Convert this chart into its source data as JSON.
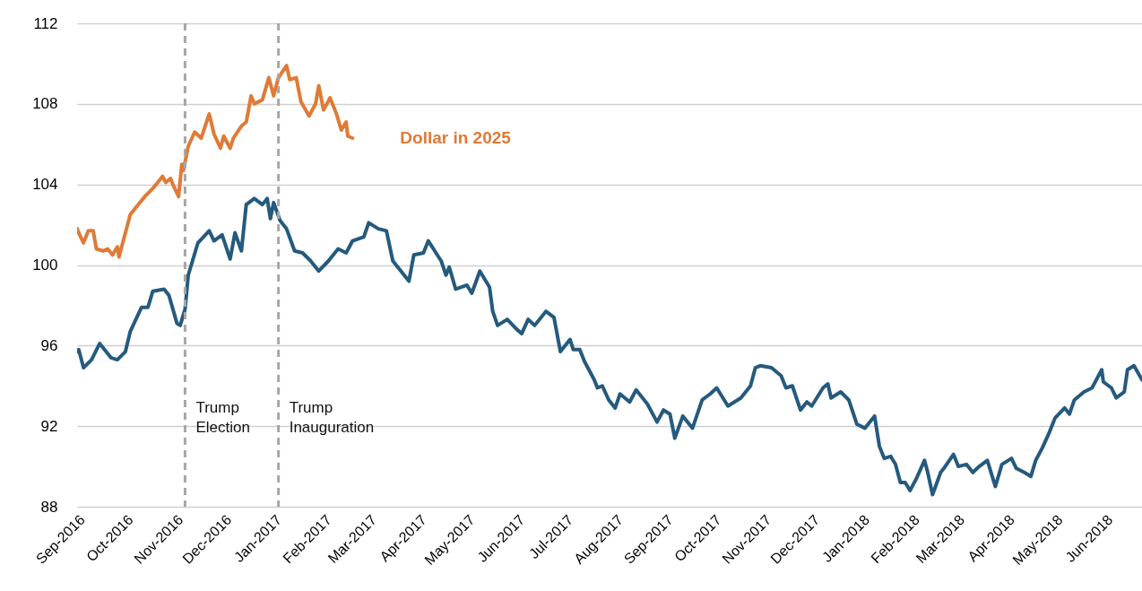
{
  "chart_data": {
    "type": "line",
    "xlim": [
      "2016-09-01",
      "2018-06-24"
    ],
    "xticks": [
      {
        "value": "2016-09-01",
        "label": "Sep-2016"
      },
      {
        "value": "2016-10-01",
        "label": "Oct-2016"
      },
      {
        "value": "2016-11-01",
        "label": "Nov-2016"
      },
      {
        "value": "2016-12-01",
        "label": "Dec-2016"
      },
      {
        "value": "2017-01-01",
        "label": "Jan-2017"
      },
      {
        "value": "2017-02-01",
        "label": "Feb-2017"
      },
      {
        "value": "2017-03-01",
        "label": "Mar-2017"
      },
      {
        "value": "2017-04-01",
        "label": "Apr-2017"
      },
      {
        "value": "2017-05-01",
        "label": "May-2017"
      },
      {
        "value": "2017-06-01",
        "label": "Jun-2017"
      },
      {
        "value": "2017-07-01",
        "label": "Jul-2017"
      },
      {
        "value": "2017-08-01",
        "label": "Aug-2017"
      },
      {
        "value": "2017-09-01",
        "label": "Sep-2017"
      },
      {
        "value": "2017-10-01",
        "label": "Oct-2017"
      },
      {
        "value": "2017-11-01",
        "label": "Nov-2017"
      },
      {
        "value": "2017-12-01",
        "label": "Dec-2017"
      },
      {
        "value": "2018-01-01",
        "label": "Jan-2018"
      },
      {
        "value": "2018-02-01",
        "label": "Feb-2018"
      },
      {
        "value": "2018-03-01",
        "label": "Mar-2018"
      },
      {
        "value": "2018-04-01",
        "label": "Apr-2018"
      },
      {
        "value": "2018-05-01",
        "label": "May-2018"
      },
      {
        "value": "2018-06-01",
        "label": "Jun-2018"
      }
    ],
    "ylim": [
      88,
      112
    ],
    "yticks": [
      88,
      92,
      96,
      100,
      104,
      108,
      112
    ],
    "grid": "y",
    "ref_lines": [
      {
        "axis": "x",
        "value": "2016-11-07",
        "label": "Trump Election",
        "color": "#a6a6a6",
        "line_style": "dashed"
      },
      {
        "axis": "x",
        "value": "2017-01-04",
        "label": "Trump Inauguration",
        "color": "#a6a6a6",
        "line_style": "dashed"
      }
    ],
    "series": [
      {
        "color": "#255a7e",
        "x": [
          "2016-09-01",
          "2016-09-02",
          "2016-09-05",
          "2016-09-10",
          "2016-09-15",
          "2016-09-22",
          "2016-09-26",
          "2016-10-01",
          "2016-10-04",
          "2016-10-11",
          "2016-10-15",
          "2016-10-18",
          "2016-10-25",
          "2016-10-28",
          "2016-11-02",
          "2016-11-04",
          "2016-11-07",
          "2016-11-09",
          "2016-11-15",
          "2016-11-22",
          "2016-11-25",
          "2016-11-30",
          "2016-12-05",
          "2016-12-08",
          "2016-12-12",
          "2016-12-15",
          "2016-12-20",
          "2016-12-25",
          "2016-12-28",
          "2016-12-30",
          "2017-01-01",
          "2017-01-05",
          "2017-01-09",
          "2017-01-14",
          "2017-01-19",
          "2017-01-24",
          "2017-01-29",
          "2017-02-04",
          "2017-02-10",
          "2017-02-15",
          "2017-02-19",
          "2017-02-26",
          "2017-03-01",
          "2017-03-07",
          "2017-03-12",
          "2017-03-16",
          "2017-03-20",
          "2017-03-26",
          "2017-03-29",
          "2017-04-04",
          "2017-04-07",
          "2017-04-15",
          "2017-04-18",
          "2017-04-20",
          "2017-04-24",
          "2017-05-01",
          "2017-05-04",
          "2017-05-09",
          "2017-05-15",
          "2017-05-17",
          "2017-05-20",
          "2017-05-26",
          "2017-06-01",
          "2017-06-04",
          "2017-06-08",
          "2017-06-12",
          "2017-06-19",
          "2017-06-24",
          "2017-06-28",
          "2017-07-04",
          "2017-07-06",
          "2017-07-10",
          "2017-07-13",
          "2017-07-19",
          "2017-07-21",
          "2017-07-24",
          "2017-07-28",
          "2017-08-01",
          "2017-08-04",
          "2017-08-10",
          "2017-08-14",
          "2017-08-21",
          "2017-08-27",
          "2017-08-31",
          "2017-09-04",
          "2017-09-07",
          "2017-09-12",
          "2017-09-18",
          "2017-09-24",
          "2017-09-29",
          "2017-10-03",
          "2017-10-10",
          "2017-10-18",
          "2017-10-24",
          "2017-10-27",
          "2017-10-30",
          "2017-11-06",
          "2017-11-12",
          "2017-11-15",
          "2017-11-19",
          "2017-11-24",
          "2017-11-28",
          "2017-12-01",
          "2017-12-08",
          "2017-12-11",
          "2017-12-13",
          "2017-12-19",
          "2017-12-24",
          "2017-12-29",
          "2018-01-03",
          "2018-01-09",
          "2018-01-12",
          "2018-01-15",
          "2018-01-19",
          "2018-01-22",
          "2018-01-25",
          "2018-01-28",
          "2018-01-31",
          "2018-02-04",
          "2018-02-09",
          "2018-02-11",
          "2018-02-14",
          "2018-02-19",
          "2018-02-21",
          "2018-02-27",
          "2018-03-02",
          "2018-03-07",
          "2018-03-11",
          "2018-03-15",
          "2018-03-20",
          "2018-03-25",
          "2018-03-29",
          "2018-04-04",
          "2018-04-07",
          "2018-04-12",
          "2018-04-16",
          "2018-04-19",
          "2018-04-23",
          "2018-04-27",
          "2018-05-01",
          "2018-05-07",
          "2018-05-10",
          "2018-05-13",
          "2018-05-19",
          "2018-05-24",
          "2018-05-30",
          "2018-05-31",
          "2018-06-05",
          "2018-06-08",
          "2018-06-13",
          "2018-06-15",
          "2018-06-19",
          "2018-06-24"
        ],
        "values": [
          95.7,
          95.8,
          94.9,
          95.3,
          96.1,
          95.4,
          95.3,
          95.7,
          96.7,
          97.9,
          97.9,
          98.7,
          98.8,
          98.5,
          97.1,
          97.0,
          97.8,
          99.5,
          101.1,
          101.7,
          101.2,
          101.5,
          100.3,
          101.6,
          100.7,
          103.0,
          103.3,
          103.0,
          103.3,
          102.3,
          103.1,
          102.2,
          101.8,
          100.7,
          100.6,
          100.2,
          99.7,
          100.2,
          100.8,
          100.6,
          101.2,
          101.4,
          102.1,
          101.8,
          101.7,
          100.2,
          99.8,
          99.2,
          100.5,
          100.6,
          101.2,
          100.2,
          99.5,
          99.9,
          98.8,
          99.0,
          98.6,
          99.7,
          98.9,
          97.7,
          97.0,
          97.3,
          96.8,
          96.6,
          97.3,
          97.0,
          97.7,
          97.4,
          95.7,
          96.3,
          95.8,
          95.8,
          95.2,
          94.3,
          93.9,
          94.0,
          93.3,
          92.9,
          93.6,
          93.2,
          93.8,
          93.1,
          92.2,
          92.8,
          92.6,
          91.4,
          92.5,
          91.9,
          93.3,
          93.6,
          93.9,
          93.0,
          93.4,
          94.0,
          94.9,
          95.0,
          94.9,
          94.5,
          93.9,
          94.0,
          92.8,
          93.2,
          93.0,
          93.9,
          94.1,
          93.4,
          93.7,
          93.3,
          92.1,
          91.9,
          92.5,
          91.0,
          90.4,
          90.5,
          90.1,
          89.2,
          89.2,
          88.8,
          89.4,
          90.3,
          89.7,
          88.6,
          89.7,
          89.9,
          90.6,
          90.0,
          90.1,
          89.7,
          90.0,
          90.3,
          89.0,
          90.1,
          90.4,
          89.9,
          89.7,
          89.5,
          90.3,
          90.9,
          91.6,
          92.4,
          92.9,
          92.6,
          93.3,
          93.7,
          93.9,
          94.8,
          94.2,
          93.9,
          93.4,
          93.7,
          94.8,
          95.0,
          94.3
        ]
      },
      {
        "name": "Dollar in 2025",
        "color": "#e07a37",
        "x": [
          "2016-09-01",
          "2016-09-02",
          "2016-09-05",
          "2016-09-08",
          "2016-09-11",
          "2016-09-13",
          "2016-09-17",
          "2016-09-20",
          "2016-09-23",
          "2016-09-26",
          "2016-09-27",
          "2016-09-30",
          "2016-10-04",
          "2016-10-08",
          "2016-10-13",
          "2016-10-18",
          "2016-10-24",
          "2016-10-26",
          "2016-10-29",
          "2016-10-31",
          "2016-11-03",
          "2016-11-05",
          "2016-11-06",
          "2016-11-09",
          "2016-11-13",
          "2016-11-17",
          "2016-11-22",
          "2016-11-25",
          "2016-11-29",
          "2016-12-01",
          "2016-12-05",
          "2016-12-07",
          "2016-12-12",
          "2016-12-15",
          "2016-12-18",
          "2016-12-20",
          "2016-12-25",
          "2016-12-29",
          "2017-01-01",
          "2017-01-04",
          "2017-01-09",
          "2017-01-11",
          "2017-01-15",
          "2017-01-18",
          "2017-01-23",
          "2017-01-27",
          "2017-01-29",
          "2017-02-01",
          "2017-02-05",
          "2017-02-09",
          "2017-02-12",
          "2017-02-15",
          "2017-02-16",
          "2017-02-19"
        ],
        "values": [
          101.8,
          101.6,
          101.1,
          101.7,
          101.7,
          100.8,
          100.7,
          100.8,
          100.5,
          100.9,
          100.4,
          101.3,
          102.5,
          102.9,
          103.4,
          103.8,
          104.4,
          104.1,
          104.3,
          103.9,
          103.4,
          105.0,
          104.7,
          105.9,
          106.6,
          106.3,
          107.5,
          106.5,
          105.8,
          106.4,
          105.8,
          106.3,
          106.9,
          107.1,
          108.4,
          108.0,
          108.2,
          109.3,
          108.4,
          109.3,
          109.9,
          109.2,
          109.3,
          108.1,
          107.4,
          108.0,
          108.9,
          107.7,
          108.3,
          107.5,
          106.7,
          107.1,
          106.4,
          106.3
        ]
      }
    ]
  }
}
